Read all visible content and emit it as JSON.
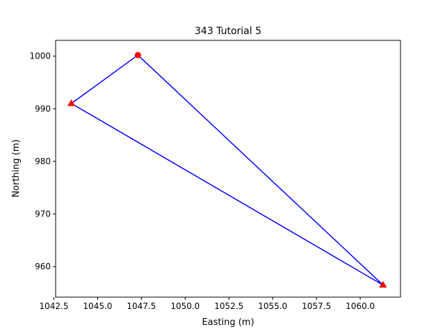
{
  "chart_data": {
    "type": "line",
    "title": "343 Tutorial 5",
    "xlabel": "Easting (m)",
    "ylabel": "Northing (m)",
    "xlim": [
      1042.6,
      1062.3
    ],
    "ylim": [
      954.2,
      1003.0
    ],
    "xticks": [
      1042.5,
      1045.0,
      1047.5,
      1050.0,
      1052.5,
      1055.0,
      1057.5,
      1060.0
    ],
    "xtick_labels": [
      "1042.5",
      "1045.0",
      "1047.5",
      "1050.0",
      "1052.5",
      "1055.0",
      "1057.5",
      "1060.0"
    ],
    "yticks": [
      960,
      970,
      980,
      990,
      1000
    ],
    "ytick_labels": [
      "960",
      "970",
      "980",
      "990",
      "1000"
    ],
    "grid": false,
    "series": [
      {
        "style": "line",
        "color": "#0000ff",
        "x": [
          1047.3,
          1043.5,
          1061.3,
          1047.3
        ],
        "y": [
          1000.2,
          991.0,
          956.5,
          1000.2
        ]
      },
      {
        "style": "marker",
        "marker": "circle",
        "color": "#ff0000",
        "x": [
          1047.3
        ],
        "y": [
          1000.2
        ]
      },
      {
        "style": "marker",
        "marker": "triangle",
        "color": "#ff0000",
        "x": [
          1043.5,
          1061.3
        ],
        "y": [
          991.0,
          956.5
        ]
      }
    ]
  }
}
